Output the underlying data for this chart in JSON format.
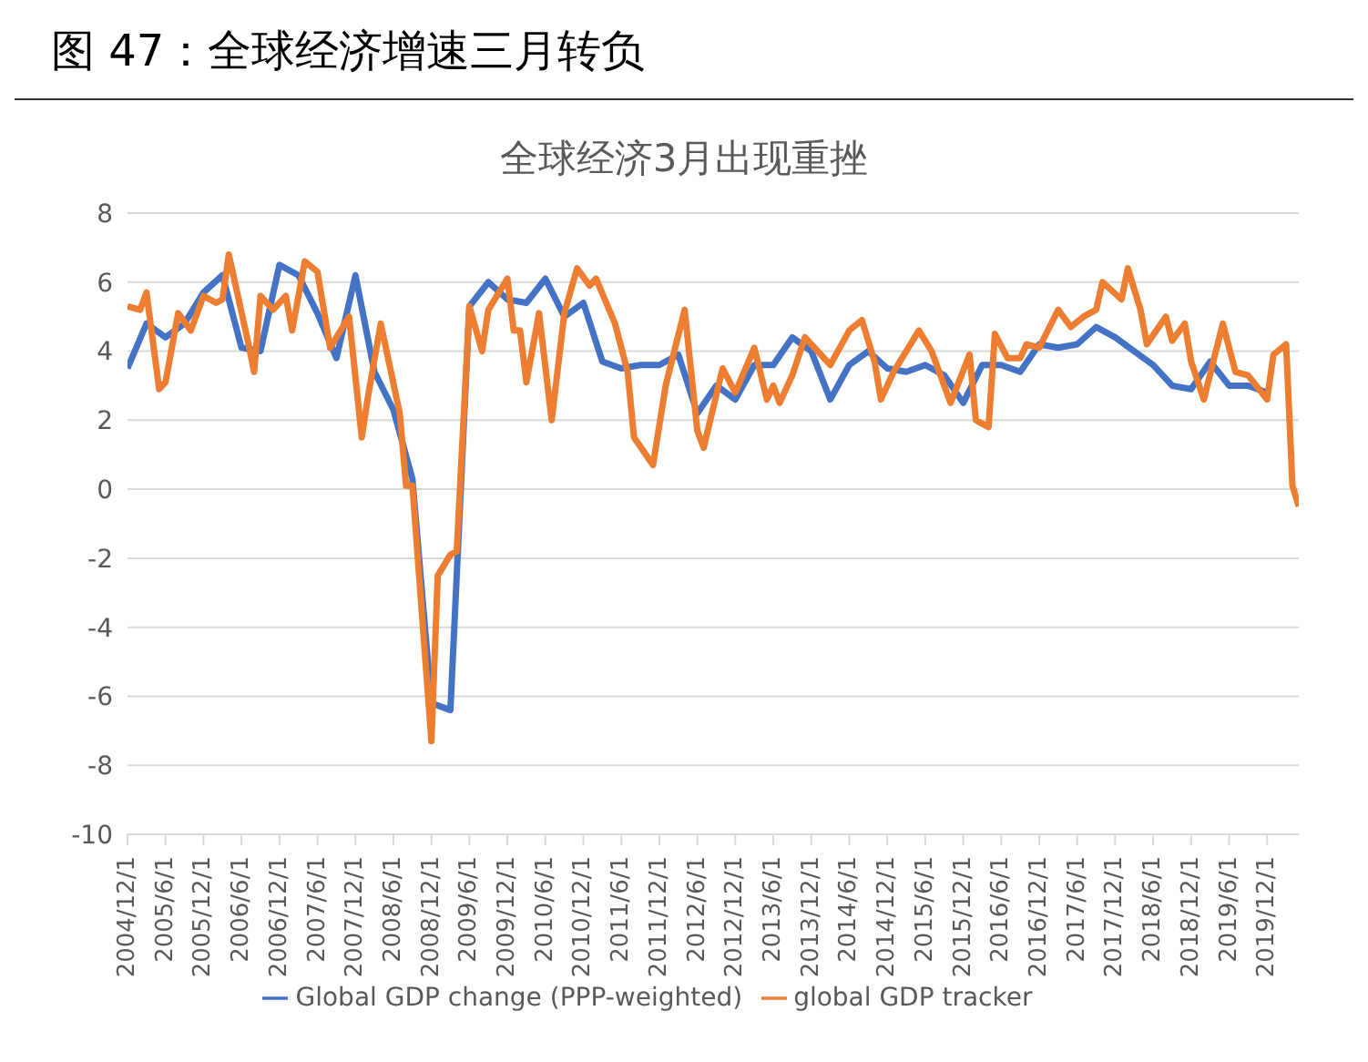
{
  "chart_data": {
    "type": "line",
    "title": "全球经济3月出现重挫",
    "annotations": [
      "图 47：全球经济增速三月转负"
    ],
    "xlim": [
      "2004-12",
      "2020-05"
    ],
    "xticks": [
      {
        "value": "2004-12",
        "label": "2004/12/1"
      },
      {
        "value": "2005-06",
        "label": "2005/6/1"
      },
      {
        "value": "2005-12",
        "label": "2005/12/1"
      },
      {
        "value": "2006-06",
        "label": "2006/6/1"
      },
      {
        "value": "2006-12",
        "label": "2006/12/1"
      },
      {
        "value": "2007-06",
        "label": "2007/6/1"
      },
      {
        "value": "2007-12",
        "label": "2007/12/1"
      },
      {
        "value": "2008-06",
        "label": "2008/6/1"
      },
      {
        "value": "2008-12",
        "label": "2008/12/1"
      },
      {
        "value": "2009-06",
        "label": "2009/6/1"
      },
      {
        "value": "2009-12",
        "label": "2009/12/1"
      },
      {
        "value": "2010-06",
        "label": "2010/6/1"
      },
      {
        "value": "2010-12",
        "label": "2010/12/1"
      },
      {
        "value": "2011-06",
        "label": "2011/6/1"
      },
      {
        "value": "2011-12",
        "label": "2011/12/1"
      },
      {
        "value": "2012-06",
        "label": "2012/6/1"
      },
      {
        "value": "2012-12",
        "label": "2012/12/1"
      },
      {
        "value": "2013-06",
        "label": "2013/6/1"
      },
      {
        "value": "2013-12",
        "label": "2013/12/1"
      },
      {
        "value": "2014-06",
        "label": "2014/6/1"
      },
      {
        "value": "2014-12",
        "label": "2014/12/1"
      },
      {
        "value": "2015-06",
        "label": "2015/6/1"
      },
      {
        "value": "2015-12",
        "label": "2015/12/1"
      },
      {
        "value": "2016-06",
        "label": "2016/6/1"
      },
      {
        "value": "2016-12",
        "label": "2016/12/1"
      },
      {
        "value": "2017-06",
        "label": "2017/6/1"
      },
      {
        "value": "2017-12",
        "label": "2017/12/1"
      },
      {
        "value": "2018-06",
        "label": "2018/6/1"
      },
      {
        "value": "2018-12",
        "label": "2018/12/1"
      },
      {
        "value": "2019-06",
        "label": "2019/6/1"
      },
      {
        "value": "2019-12",
        "label": "2019/12/1"
      }
    ],
    "ylim": [
      -10,
      8
    ],
    "yticks": [
      -10,
      -8,
      -6,
      -4,
      -2,
      0,
      2,
      4,
      6,
      8
    ],
    "grid": "y",
    "legend": "bottom",
    "marker": "none",
    "line_style": "solid",
    "series": [
      {
        "name": "Global GDP change (PPP-weighted)",
        "color": "#4472c4",
        "x": [
          "2004-12",
          "2005-03",
          "2005-06",
          "2005-09",
          "2005-12",
          "2006-03",
          "2006-06",
          "2006-09",
          "2006-12",
          "2007-03",
          "2007-06",
          "2007-09",
          "2007-12",
          "2008-03",
          "2008-06",
          "2008-09",
          "2008-12",
          "2009-03",
          "2009-06",
          "2009-09",
          "2009-12",
          "2010-03",
          "2010-06",
          "2010-09",
          "2010-12",
          "2011-03",
          "2011-06",
          "2011-09",
          "2011-12",
          "2012-03",
          "2012-06",
          "2012-09",
          "2012-12",
          "2013-03",
          "2013-06",
          "2013-09",
          "2013-12",
          "2014-03",
          "2014-06",
          "2014-09",
          "2014-12",
          "2015-03",
          "2015-06",
          "2015-09",
          "2015-12",
          "2016-03",
          "2016-06",
          "2016-09",
          "2016-12",
          "2017-03",
          "2017-06",
          "2017-09",
          "2017-12",
          "2018-03",
          "2018-06",
          "2018-09",
          "2018-12",
          "2019-03",
          "2019-06",
          "2019-09",
          "2019-12"
        ],
        "values": [
          3.5,
          4.8,
          4.4,
          4.8,
          5.7,
          6.2,
          4.1,
          4.0,
          6.5,
          6.2,
          5.1,
          3.8,
          6.2,
          3.4,
          2.3,
          0.3,
          -6.2,
          -6.4,
          5.3,
          6.0,
          5.5,
          5.4,
          6.1,
          5.0,
          5.4,
          3.7,
          3.5,
          3.6,
          3.6,
          3.9,
          2.2,
          3.0,
          2.6,
          3.6,
          3.6,
          4.4,
          4.0,
          2.6,
          3.6,
          4.0,
          3.5,
          3.4,
          3.6,
          3.3,
          2.5,
          3.6,
          3.6,
          3.4,
          4.2,
          4.1,
          4.2,
          4.7,
          4.4,
          4.0,
          3.6,
          3.0,
          2.9,
          3.7,
          3.0,
          3.0,
          2.8
        ]
      },
      {
        "name": "global GDP tracker",
        "color": "#ed7d31",
        "x": [
          "2004-12",
          "2005-02",
          "2005-03",
          "2005-05",
          "2005-06",
          "2005-08",
          "2005-10",
          "2005-12",
          "2006-02",
          "2006-03",
          "2006-04",
          "2006-07",
          "2006-08",
          "2006-09",
          "2006-11",
          "2007-01",
          "2007-02",
          "2007-04",
          "2007-06",
          "2007-08",
          "2007-10",
          "2007-11",
          "2008-01",
          "2008-02",
          "2008-04",
          "2008-07",
          "2008-08",
          "2008-09",
          "2008-12",
          "2009-01",
          "2009-03",
          "2009-04",
          "2009-06",
          "2009-08",
          "2009-09",
          "2009-12",
          "2010-01",
          "2010-02",
          "2010-03",
          "2010-05",
          "2010-07",
          "2010-09",
          "2010-11",
          "2011-01",
          "2011-02",
          "2011-05",
          "2011-07",
          "2011-08",
          "2011-11",
          "2012-01",
          "2012-04",
          "2012-06",
          "2012-07",
          "2012-10",
          "2012-12",
          "2013-03",
          "2013-05",
          "2013-06",
          "2013-07",
          "2013-09",
          "2013-11",
          "2014-03",
          "2014-06",
          "2014-08",
          "2014-10",
          "2014-11",
          "2015-01",
          "2015-03",
          "2015-05",
          "2015-07",
          "2015-10",
          "2016-01",
          "2016-02",
          "2016-04",
          "2016-05",
          "2016-07",
          "2016-09",
          "2016-10",
          "2016-12",
          "2017-03",
          "2017-05",
          "2017-07",
          "2017-09",
          "2017-10",
          "2018-01",
          "2018-02",
          "2018-04",
          "2018-05",
          "2018-08",
          "2018-09",
          "2018-11",
          "2018-12",
          "2019-02",
          "2019-05",
          "2019-07",
          "2019-09",
          "2019-12",
          "2020-01",
          "2020-03",
          "2020-04",
          "2020-05"
        ],
        "values": [
          5.3,
          5.2,
          5.7,
          2.9,
          3.1,
          5.1,
          4.6,
          5.6,
          5.4,
          5.5,
          6.8,
          4.3,
          3.4,
          5.6,
          5.2,
          5.6,
          4.6,
          6.6,
          6.3,
          4.1,
          4.7,
          5.0,
          1.5,
          2.7,
          4.8,
          2.2,
          0.1,
          0.1,
          -7.3,
          -2.5,
          -1.9,
          -1.8,
          5.3,
          4.0,
          5.2,
          6.1,
          4.6,
          4.6,
          3.1,
          5.1,
          2.0,
          5.1,
          6.4,
          5.9,
          6.1,
          4.8,
          3.4,
          1.5,
          0.7,
          3.0,
          5.2,
          1.7,
          1.2,
          3.5,
          2.8,
          4.1,
          2.6,
          3.0,
          2.5,
          3.3,
          4.4,
          3.6,
          4.6,
          4.9,
          3.7,
          2.6,
          3.4,
          4.0,
          4.6,
          4.0,
          2.5,
          3.9,
          2.0,
          1.8,
          4.5,
          3.8,
          3.8,
          4.2,
          4.1,
          5.2,
          4.7,
          5.0,
          5.2,
          6.0,
          5.5,
          6.4,
          5.2,
          4.2,
          5.0,
          4.3,
          4.8,
          3.7,
          2.6,
          4.8,
          3.4,
          3.3,
          2.6,
          3.9,
          4.2,
          0.1,
          -0.5
        ]
      }
    ]
  }
}
